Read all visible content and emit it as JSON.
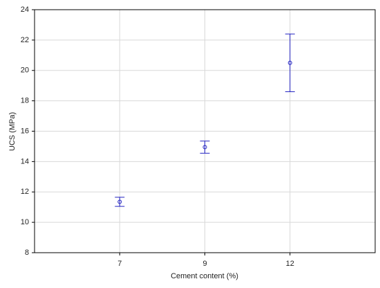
{
  "chart_data": {
    "type": "errorbar",
    "xlabel": "Cement content (%)",
    "ylabel": "UCS (MPa)",
    "categories": [
      "7",
      "9",
      "12"
    ],
    "values": [
      11.35,
      14.95,
      20.5
    ],
    "errors": [
      0.3,
      0.4,
      1.9
    ],
    "color": "#2020c0",
    "ylim": [
      8,
      24
    ],
    "yticks": [
      8,
      10,
      12,
      14,
      16,
      18,
      20,
      22,
      24
    ],
    "grid": true
  }
}
